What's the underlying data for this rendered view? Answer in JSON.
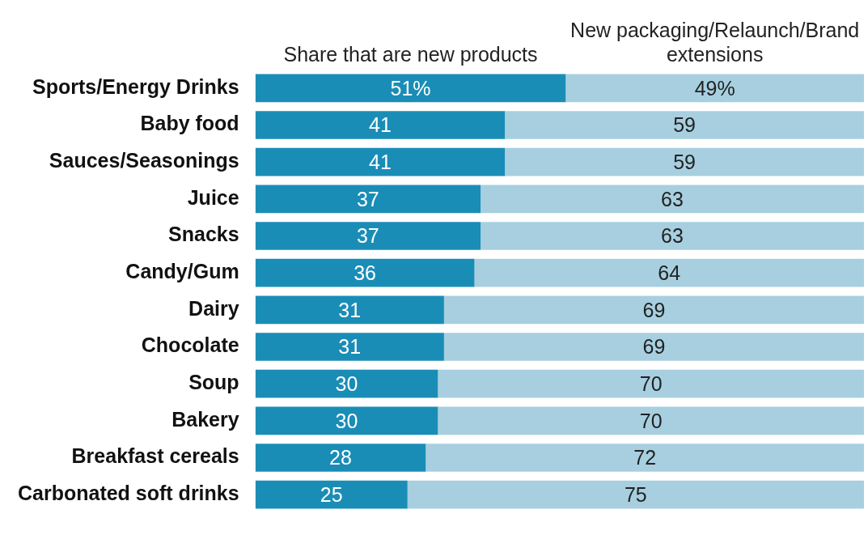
{
  "chart_data": {
    "type": "bar",
    "orientation": "horizontal",
    "stacked": true,
    "legend": "top",
    "tick_labels": "y",
    "xlim": [
      0,
      100
    ],
    "categories": [
      "Sports/Energy Drinks",
      "Baby food",
      "Sauces/Seasonings",
      "Juice",
      "Snacks",
      "Candy/Gum",
      "Dairy",
      "Chocolate",
      "Soup",
      "Bakery",
      "Breakfast cereals",
      "Carbonated soft drinks"
    ],
    "series": [
      {
        "name": "Share that are new products",
        "color": "#1a8db6",
        "values": [
          51,
          41,
          41,
          37,
          37,
          36,
          31,
          31,
          30,
          30,
          28,
          25
        ],
        "value_labels": [
          "51%",
          "41",
          "41",
          "37",
          "37",
          "36",
          "31",
          "31",
          "30",
          "30",
          "28",
          "25"
        ]
      },
      {
        "name": "New packaging/Relaunch/Brand extensions",
        "color": "#a7cfe0",
        "values": [
          49,
          59,
          59,
          63,
          63,
          64,
          69,
          69,
          70,
          70,
          72,
          75
        ],
        "value_labels": [
          "49%",
          "59",
          "59",
          "63",
          "63",
          "64",
          "69",
          "69",
          "70",
          "70",
          "72",
          "75"
        ]
      }
    ]
  }
}
